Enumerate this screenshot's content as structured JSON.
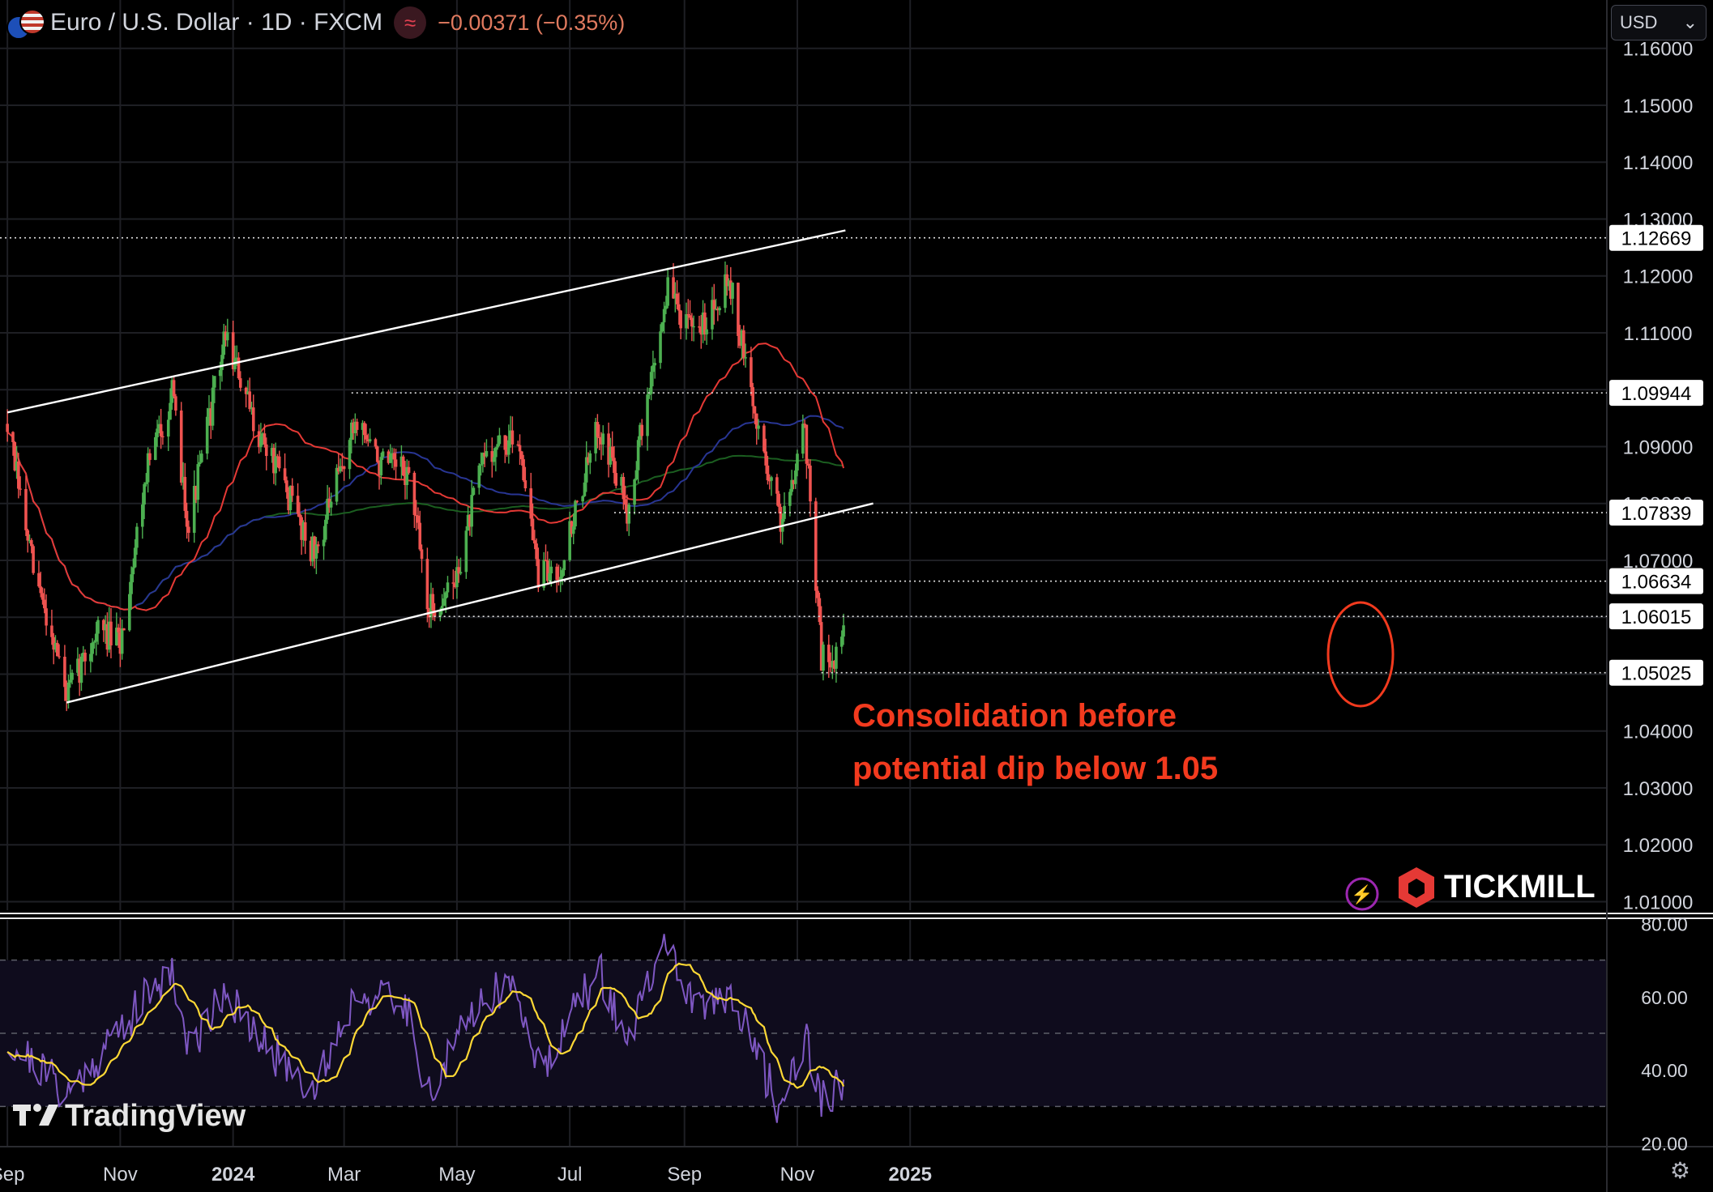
{
  "header": {
    "symbol": "Euro / U.S. Dollar · 1D · FXCM",
    "change": "−0.00371 (−0.35%)",
    "currency": "USD"
  },
  "icons": {
    "indicator": "wave-icon",
    "settings": "gear-icon",
    "currency_dropdown": "chevron-down-icon",
    "lightning": "lightning-icon"
  },
  "colors": {
    "up": "#4caf50",
    "down": "#ef5350",
    "channel": "#ffffff",
    "sma50": "#e53935",
    "sma100": "#283593",
    "sma200": "#1b5e20",
    "rsi": "#7e57c2",
    "rsi_ma": "#fdd835",
    "annotation": "#f23a1e"
  },
  "annotation": {
    "line1": "Consolidation before",
    "line2": "potential dip below 1.05"
  },
  "branding": {
    "tickmill": "TICKMILL",
    "tradingview": "TradingView"
  },
  "chart_data": {
    "type": "candlestick",
    "price_axis": {
      "ticks": [
        "1.16000",
        "1.15000",
        "1.14000",
        "1.13000",
        "1.12000",
        "1.11000",
        "1.10000",
        "1.09000",
        "1.08000",
        "1.07000",
        "1.06000",
        "1.05000",
        "1.04000",
        "1.03000",
        "1.02000",
        "1.01000"
      ],
      "ylim": [
        1.0085,
        1.1685
      ]
    },
    "price_labels": [
      "1.12669",
      "1.09944",
      "1.07839",
      "1.06634",
      "1.06015",
      "1.05025"
    ],
    "time_axis": [
      "Sep",
      "Nov",
      "2024",
      "Mar",
      "May",
      "Jul",
      "Sep",
      "Nov",
      "2025"
    ],
    "price_path": [
      [
        "2023-09-01",
        1.094
      ],
      [
        "2023-09-15",
        1.068
      ],
      [
        "2023-09-27",
        1.055
      ],
      [
        "2023-10-03",
        1.046
      ],
      [
        "2023-10-20",
        1.058
      ],
      [
        "2023-11-01",
        1.055
      ],
      [
        "2023-11-15",
        1.086
      ],
      [
        "2023-11-29",
        1.099
      ],
      [
        "2023-12-08",
        1.076
      ],
      [
        "2023-12-28",
        1.11
      ],
      [
        "2024-01-10",
        1.096
      ],
      [
        "2024-01-26",
        1.085
      ],
      [
        "2024-02-14",
        1.071
      ],
      [
        "2024-03-08",
        1.095
      ],
      [
        "2024-03-20",
        1.087
      ],
      [
        "2024-04-05",
        1.085
      ],
      [
        "2024-04-16",
        1.061
      ],
      [
        "2024-04-30",
        1.066
      ],
      [
        "2024-05-16",
        1.089
      ],
      [
        "2024-06-04",
        1.091
      ],
      [
        "2024-06-14",
        1.067
      ],
      [
        "2024-06-26",
        1.069
      ],
      [
        "2024-07-17",
        1.094
      ],
      [
        "2024-08-01",
        1.079
      ],
      [
        "2024-08-23",
        1.118
      ],
      [
        "2024-09-06",
        1.109
      ],
      [
        "2024-09-25",
        1.12
      ],
      [
        "2024-10-10",
        1.094
      ],
      [
        "2024-10-23",
        1.077
      ],
      [
        "2024-11-05",
        1.094
      ],
      [
        "2024-11-14",
        1.053
      ],
      [
        "2024-11-22",
        1.053
      ],
      [
        "2024-11-26",
        1.058
      ]
    ],
    "channel": {
      "upper": [
        [
          "2023-09-01",
          1.096
        ],
        [
          "2024-11-27",
          1.128
        ]
      ],
      "lower": [
        [
          "2023-10-03",
          1.045
        ],
        [
          "2024-12-12",
          1.08
        ]
      ]
    },
    "horizontal_levels": [
      1.12669,
      1.09944,
      1.07839,
      1.06634,
      1.06015,
      1.05025
    ],
    "rsi": {
      "ticks": [
        "80.00",
        "60.00",
        "40.00",
        "20.00"
      ],
      "ylim": [
        19,
        81
      ],
      "bands": [
        30,
        50,
        70
      ],
      "path": [
        [
          "2023-09-01",
          48
        ],
        [
          "2023-09-27",
          37
        ],
        [
          "2023-10-03",
          33
        ],
        [
          "2023-10-25",
          47
        ],
        [
          "2023-11-15",
          60
        ],
        [
          "2023-11-29",
          68
        ],
        [
          "2023-12-08",
          45
        ],
        [
          "2023-12-28",
          63
        ],
        [
          "2024-01-10",
          50
        ],
        [
          "2024-02-14",
          35
        ],
        [
          "2024-03-08",
          62
        ],
        [
          "2024-04-05",
          56
        ],
        [
          "2024-04-16",
          33
        ],
        [
          "2024-05-16",
          62
        ],
        [
          "2024-06-04",
          61
        ],
        [
          "2024-06-14",
          40
        ],
        [
          "2024-07-17",
          67
        ],
        [
          "2024-08-01",
          48
        ],
        [
          "2024-08-23",
          76
        ],
        [
          "2024-09-06",
          55
        ],
        [
          "2024-09-25",
          62
        ],
        [
          "2024-10-23",
          29
        ],
        [
          "2024-11-05",
          50
        ],
        [
          "2024-11-14",
          32
        ],
        [
          "2024-11-26",
          35
        ]
      ]
    }
  }
}
